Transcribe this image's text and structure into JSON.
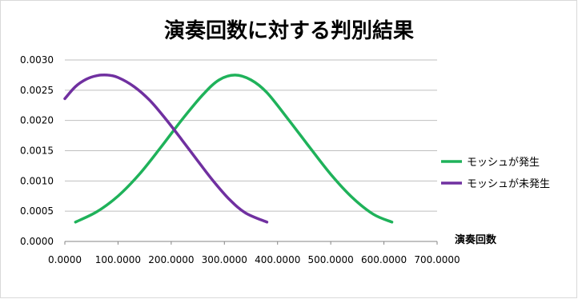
{
  "chart_data": {
    "type": "line",
    "title": "演奏回数に対する判別結果",
    "xlabel": "演奏回数",
    "ylabel": "",
    "xlim": [
      0,
      700
    ],
    "ylim": [
      0,
      0.003
    ],
    "x_ticks": [
      "0.0000",
      "100.0000",
      "200.0000",
      "300.0000",
      "400.0000",
      "500.0000",
      "600.0000",
      "700.0000"
    ],
    "y_ticks": [
      "0.0000",
      "0.0005",
      "0.0010",
      "0.0015",
      "0.0020",
      "0.0025",
      "0.0030"
    ],
    "grid": "horizontal",
    "legend_position": "right",
    "series": [
      {
        "name": "モッシュが発生",
        "color": "#1fb25a",
        "x": [
          20,
          60,
          100,
          140,
          180,
          220,
          260,
          290,
          320,
          350,
          380,
          420,
          460,
          500,
          540,
          580,
          615
        ],
        "y": [
          0.00032,
          0.00049,
          0.00075,
          0.00111,
          0.00155,
          0.00201,
          0.00243,
          0.00267,
          0.00275,
          0.00267,
          0.00246,
          0.00202,
          0.00156,
          0.00111,
          0.00073,
          0.00045,
          0.00032
        ]
      },
      {
        "name": "モッシュが未発生",
        "color": "#7030a0",
        "x": [
          0,
          20,
          40,
          60,
          80,
          100,
          130,
          160,
          190,
          220,
          250,
          280,
          310,
          340,
          380
        ],
        "y": [
          0.00236,
          0.00256,
          0.00268,
          0.00274,
          0.00275,
          0.00271,
          0.00256,
          0.00233,
          0.00202,
          0.00168,
          0.00133,
          0.00099,
          0.00069,
          0.00047,
          0.00032
        ]
      }
    ]
  }
}
